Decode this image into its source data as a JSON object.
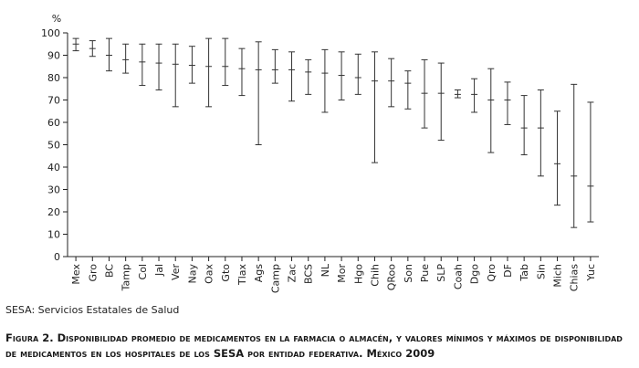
{
  "chart_data": {
    "type": "errorbar",
    "ylabel": "%",
    "ylim": [
      0,
      100
    ],
    "yticks": [
      0,
      10,
      20,
      30,
      40,
      50,
      60,
      70,
      80,
      90,
      100
    ],
    "grid": false,
    "categories": [
      "Mex",
      "Gro",
      "BC",
      "Tamp",
      "Col",
      "Jal",
      "Ver",
      "Nay",
      "Oax",
      "Gto",
      "Tlax",
      "Ags",
      "Camp",
      "Zac",
      "BCS",
      "NL",
      "Mor",
      "Hgo",
      "Chih",
      "QRoo",
      "Son",
      "Pue",
      "SLP",
      "Coah",
      "Dgo",
      "Qro",
      "DF",
      "Tab",
      "Sin",
      "Mich",
      "Chias",
      "Yuc"
    ],
    "series": [
      {
        "values": [
          95,
          93,
          90,
          88,
          87,
          86.5,
          86,
          85.5,
          85,
          85,
          84,
          83.5,
          83.5,
          83.5,
          82.5,
          82,
          81,
          80,
          78.5,
          78.5,
          77.5,
          73,
          73,
          72.5,
          72.5,
          70,
          70,
          57.5,
          57.5,
          41.5,
          36,
          31.5
        ]
      },
      {
        "values": [
          92,
          89.5,
          83,
          82,
          76.5,
          74.5,
          67,
          77.5,
          67,
          76.5,
          72,
          50,
          77.5,
          69.5,
          72.5,
          64.5,
          70,
          72.5,
          42,
          67,
          66,
          57.5,
          52,
          71,
          64.5,
          46.5,
          59,
          45.5,
          36,
          23,
          13,
          15.5
        ]
      },
      {
        "values": [
          97.5,
          96.5,
          97.5,
          95,
          95,
          95,
          95,
          94,
          97.5,
          97.5,
          93,
          96,
          92.5,
          91.5,
          88,
          92.5,
          91.5,
          90.5,
          91.5,
          88.5,
          83,
          88,
          86.5,
          74.5,
          79.5,
          84,
          78,
          72,
          74.5,
          65,
          77,
          69
        ]
      }
    ]
  },
  "source_note": "SESA: Servicios Estatales de Salud",
  "caption": "Figura 2. Disponibilidad promedio de medicamentos en la farmacia o almacén, y valores mínimos y máximos de disponibilidad de medicamentos en los hospitales de los SESA por entidad federativa. México 2009"
}
